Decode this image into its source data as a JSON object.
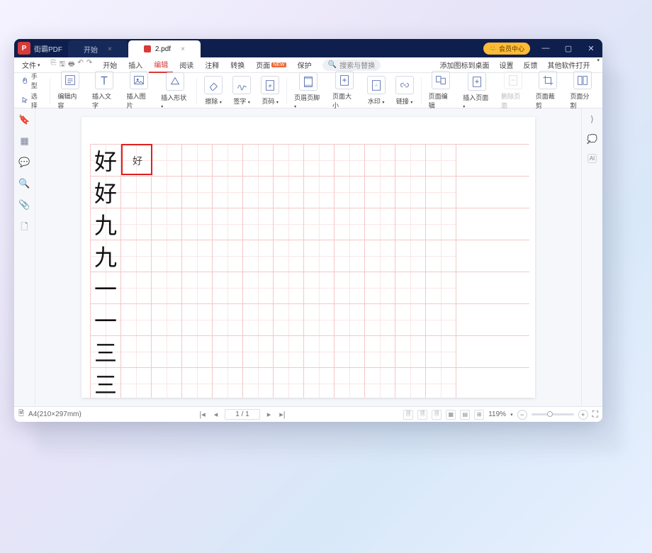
{
  "app_name": "街霸PDF",
  "tabs": [
    {
      "label": "开始",
      "active": false
    },
    {
      "label": "2.pdf",
      "active": true
    }
  ],
  "member_badge": "会员中心",
  "menubar": {
    "file": "文件",
    "items": [
      "开始",
      "插入",
      "编辑",
      "阅读",
      "注释",
      "转换",
      "页面",
      "保护"
    ],
    "active_index": 2,
    "page_new_tag": "NEW",
    "search_placeholder": "搜索与替换",
    "right": [
      "添加图标到桌面",
      "设置",
      "反馈",
      "其他软件打开"
    ]
  },
  "ribbon": {
    "hand_label": "手型",
    "select_label": "选择",
    "tools": [
      {
        "label": "编辑内容",
        "icon": "edit-content"
      },
      {
        "label": "插入文字",
        "icon": "insert-text"
      },
      {
        "label": "插入图片",
        "icon": "insert-image"
      },
      {
        "label": "插入形状",
        "icon": "insert-shape",
        "dropdown": true
      },
      {
        "label": "擦除",
        "icon": "erase",
        "dropdown": true
      },
      {
        "label": "签字",
        "icon": "sign",
        "dropdown": true
      },
      {
        "label": "页码",
        "icon": "page-number",
        "dropdown": true
      },
      {
        "label": "页眉页脚",
        "icon": "header-footer",
        "dropdown": true
      },
      {
        "label": "页面大小",
        "icon": "page-size"
      },
      {
        "label": "水印",
        "icon": "watermark",
        "dropdown": true
      },
      {
        "label": "链接",
        "icon": "link",
        "dropdown": true
      },
      {
        "label": "页面编辑",
        "icon": "page-edit"
      },
      {
        "label": "插入页面",
        "icon": "insert-page",
        "dropdown": true
      },
      {
        "label": "删除页面",
        "icon": "delete-page",
        "disabled": true
      },
      {
        "label": "页面裁剪",
        "icon": "crop"
      },
      {
        "label": "页面分割",
        "icon": "split"
      }
    ]
  },
  "document": {
    "grid_cols": 12,
    "row_chars": [
      "好",
      "好",
      "九",
      "九",
      "一",
      "一",
      "三",
      "三"
    ],
    "highlight": {
      "row": 0,
      "col": 1
    },
    "highlight_char": "好"
  },
  "statusbar": {
    "size_text": "A4(210×297mm)",
    "page_text": "1 / 1",
    "zoom_text": "119%"
  },
  "colors": {
    "accent": "#d83a3a",
    "titlebar": "#0e1f4d",
    "grid_line": "#f4c8c8",
    "grid_guide": "#fbe6e6",
    "highlight_border": "#e02020"
  }
}
